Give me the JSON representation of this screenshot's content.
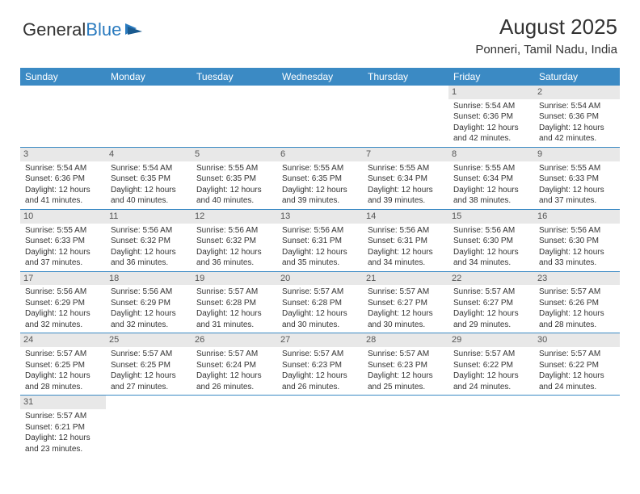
{
  "logo": {
    "text_general": "General",
    "text_blue": "Blue"
  },
  "title": "August 2025",
  "location": "Ponneri, Tamil Nadu, India",
  "colors": {
    "header_bg": "#3b8ac4",
    "header_fg": "#ffffff",
    "daynum_bg": "#e8e8e8",
    "grid_line": "#3b8ac4"
  },
  "weekdays": [
    "Sunday",
    "Monday",
    "Tuesday",
    "Wednesday",
    "Thursday",
    "Friday",
    "Saturday"
  ],
  "weeks": [
    [
      null,
      null,
      null,
      null,
      null,
      {
        "n": "1",
        "sr": "5:54 AM",
        "ss": "6:36 PM",
        "dl": "12 hours and 42 minutes."
      },
      {
        "n": "2",
        "sr": "5:54 AM",
        "ss": "6:36 PM",
        "dl": "12 hours and 42 minutes."
      }
    ],
    [
      {
        "n": "3",
        "sr": "5:54 AM",
        "ss": "6:36 PM",
        "dl": "12 hours and 41 minutes."
      },
      {
        "n": "4",
        "sr": "5:54 AM",
        "ss": "6:35 PM",
        "dl": "12 hours and 40 minutes."
      },
      {
        "n": "5",
        "sr": "5:55 AM",
        "ss": "6:35 PM",
        "dl": "12 hours and 40 minutes."
      },
      {
        "n": "6",
        "sr": "5:55 AM",
        "ss": "6:35 PM",
        "dl": "12 hours and 39 minutes."
      },
      {
        "n": "7",
        "sr": "5:55 AM",
        "ss": "6:34 PM",
        "dl": "12 hours and 39 minutes."
      },
      {
        "n": "8",
        "sr": "5:55 AM",
        "ss": "6:34 PM",
        "dl": "12 hours and 38 minutes."
      },
      {
        "n": "9",
        "sr": "5:55 AM",
        "ss": "6:33 PM",
        "dl": "12 hours and 37 minutes."
      }
    ],
    [
      {
        "n": "10",
        "sr": "5:55 AM",
        "ss": "6:33 PM",
        "dl": "12 hours and 37 minutes."
      },
      {
        "n": "11",
        "sr": "5:56 AM",
        "ss": "6:32 PM",
        "dl": "12 hours and 36 minutes."
      },
      {
        "n": "12",
        "sr": "5:56 AM",
        "ss": "6:32 PM",
        "dl": "12 hours and 36 minutes."
      },
      {
        "n": "13",
        "sr": "5:56 AM",
        "ss": "6:31 PM",
        "dl": "12 hours and 35 minutes."
      },
      {
        "n": "14",
        "sr": "5:56 AM",
        "ss": "6:31 PM",
        "dl": "12 hours and 34 minutes."
      },
      {
        "n": "15",
        "sr": "5:56 AM",
        "ss": "6:30 PM",
        "dl": "12 hours and 34 minutes."
      },
      {
        "n": "16",
        "sr": "5:56 AM",
        "ss": "6:30 PM",
        "dl": "12 hours and 33 minutes."
      }
    ],
    [
      {
        "n": "17",
        "sr": "5:56 AM",
        "ss": "6:29 PM",
        "dl": "12 hours and 32 minutes."
      },
      {
        "n": "18",
        "sr": "5:56 AM",
        "ss": "6:29 PM",
        "dl": "12 hours and 32 minutes."
      },
      {
        "n": "19",
        "sr": "5:57 AM",
        "ss": "6:28 PM",
        "dl": "12 hours and 31 minutes."
      },
      {
        "n": "20",
        "sr": "5:57 AM",
        "ss": "6:28 PM",
        "dl": "12 hours and 30 minutes."
      },
      {
        "n": "21",
        "sr": "5:57 AM",
        "ss": "6:27 PM",
        "dl": "12 hours and 30 minutes."
      },
      {
        "n": "22",
        "sr": "5:57 AM",
        "ss": "6:27 PM",
        "dl": "12 hours and 29 minutes."
      },
      {
        "n": "23",
        "sr": "5:57 AM",
        "ss": "6:26 PM",
        "dl": "12 hours and 28 minutes."
      }
    ],
    [
      {
        "n": "24",
        "sr": "5:57 AM",
        "ss": "6:25 PM",
        "dl": "12 hours and 28 minutes."
      },
      {
        "n": "25",
        "sr": "5:57 AM",
        "ss": "6:25 PM",
        "dl": "12 hours and 27 minutes."
      },
      {
        "n": "26",
        "sr": "5:57 AM",
        "ss": "6:24 PM",
        "dl": "12 hours and 26 minutes."
      },
      {
        "n": "27",
        "sr": "5:57 AM",
        "ss": "6:23 PM",
        "dl": "12 hours and 26 minutes."
      },
      {
        "n": "28",
        "sr": "5:57 AM",
        "ss": "6:23 PM",
        "dl": "12 hours and 25 minutes."
      },
      {
        "n": "29",
        "sr": "5:57 AM",
        "ss": "6:22 PM",
        "dl": "12 hours and 24 minutes."
      },
      {
        "n": "30",
        "sr": "5:57 AM",
        "ss": "6:22 PM",
        "dl": "12 hours and 24 minutes."
      }
    ],
    [
      {
        "n": "31",
        "sr": "5:57 AM",
        "ss": "6:21 PM",
        "dl": "12 hours and 23 minutes."
      },
      null,
      null,
      null,
      null,
      null,
      null
    ]
  ],
  "labels": {
    "sunrise": "Sunrise:",
    "sunset": "Sunset:",
    "daylight": "Daylight:"
  }
}
